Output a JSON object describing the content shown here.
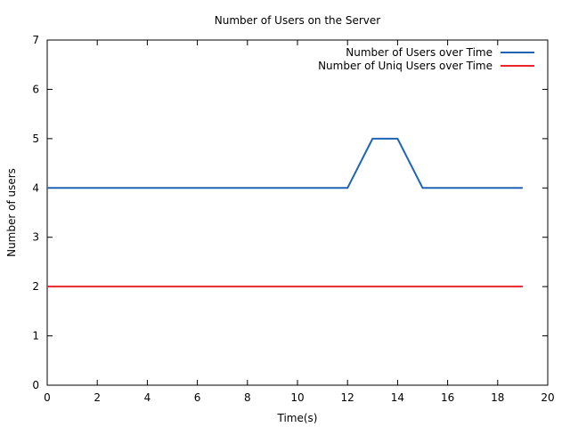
{
  "chart_data": {
    "type": "line",
    "title": "Number of Users on the Server",
    "xlabel": "Time(s)",
    "ylabel": "Number of users",
    "xlim": [
      0,
      20
    ],
    "ylim": [
      0,
      7
    ],
    "xticks": [
      0,
      2,
      4,
      6,
      8,
      10,
      12,
      14,
      16,
      18,
      20
    ],
    "yticks": [
      0,
      1,
      2,
      3,
      4,
      5,
      6,
      7
    ],
    "grid": false,
    "legend_position": "top-right",
    "series": [
      {
        "name": "Number of Users over Time",
        "color": "#1f64b4",
        "x": [
          0,
          1,
          2,
          3,
          4,
          5,
          6,
          7,
          8,
          9,
          10,
          11,
          12,
          13,
          14,
          15,
          16,
          17,
          18,
          19
        ],
        "y": [
          4,
          4,
          4,
          4,
          4,
          4,
          4,
          4,
          4,
          4,
          4,
          4,
          4,
          5,
          5,
          4,
          4,
          4,
          4,
          4
        ]
      },
      {
        "name": "Number of Uniq Users over Time",
        "color": "#e8262b",
        "x": [
          0,
          1,
          2,
          3,
          4,
          5,
          6,
          7,
          8,
          9,
          10,
          11,
          12,
          13,
          14,
          15,
          16,
          17,
          18,
          19
        ],
        "y": [
          2,
          2,
          2,
          2,
          2,
          2,
          2,
          2,
          2,
          2,
          2,
          2,
          2,
          2,
          2,
          2,
          2,
          2,
          2,
          2
        ]
      }
    ]
  }
}
